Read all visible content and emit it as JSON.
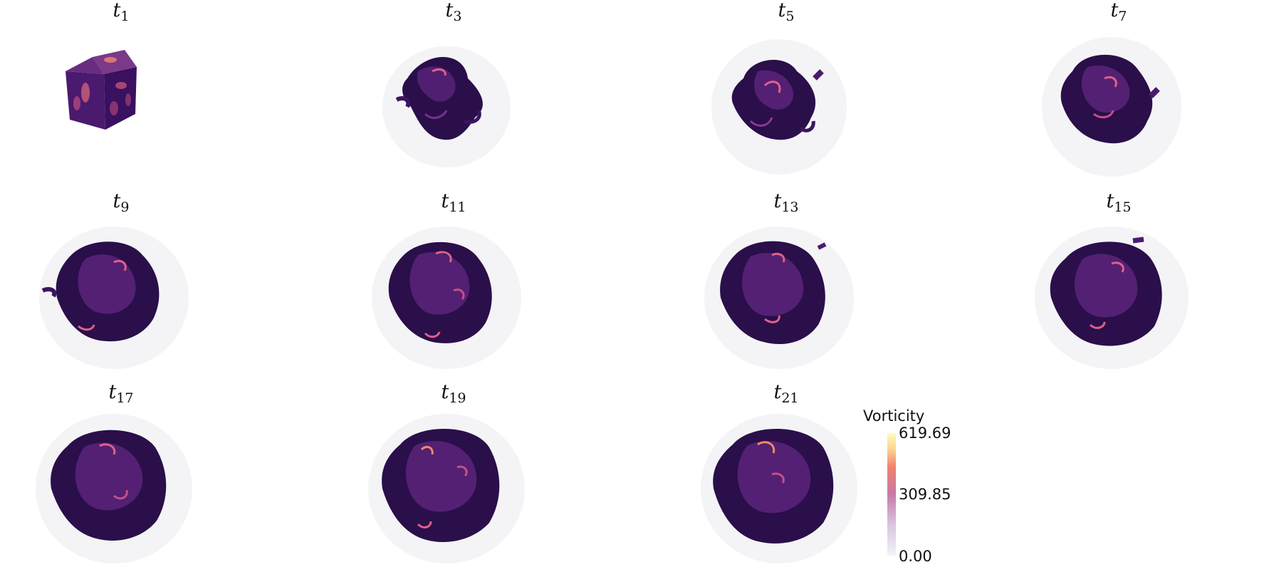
{
  "panels": [
    {
      "base": "t",
      "sub": "1"
    },
    {
      "base": "t",
      "sub": "3"
    },
    {
      "base": "t",
      "sub": "5"
    },
    {
      "base": "t",
      "sub": "7"
    },
    {
      "base": "t",
      "sub": "9"
    },
    {
      "base": "t",
      "sub": "11"
    },
    {
      "base": "t",
      "sub": "13"
    },
    {
      "base": "t",
      "sub": "15"
    },
    {
      "base": "t",
      "sub": "17"
    },
    {
      "base": "t",
      "sub": "19"
    },
    {
      "base": "t",
      "sub": "21"
    }
  ],
  "colorbar": {
    "label": "Vorticity",
    "max_label": "619.69",
    "mid_label": "309.85",
    "min_label": "0.00",
    "colors": [
      "#f4f2f8",
      "#c77aa6",
      "#f1806f",
      "#fcfcbf"
    ]
  },
  "colors": {
    "vortex_dark": "#2a0f4a",
    "vortex_mid": "#5a237a",
    "vortex_highlight": "#e0608a",
    "haze": "#d9d9de"
  }
}
